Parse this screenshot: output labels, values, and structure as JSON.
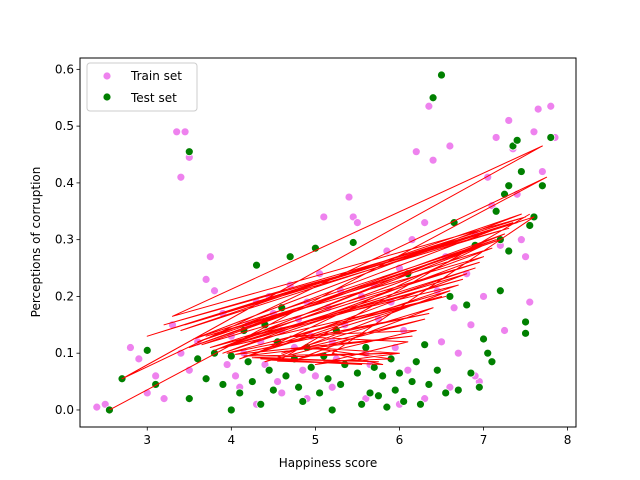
{
  "chart_data": {
    "type": "scatter",
    "xlabel": "Happiness score",
    "ylabel": "Perceptions of corruption",
    "xlim": [
      2.2,
      8.1
    ],
    "ylim": [
      -0.03,
      0.62
    ],
    "xticks": [
      3,
      4,
      5,
      6,
      7,
      8
    ],
    "yticks": [
      0.0,
      0.1,
      0.2,
      0.3,
      0.4,
      0.5,
      0.6
    ],
    "grid": false,
    "legend_position": "top-left",
    "series": [
      {
        "name": "Train set",
        "kind": "scatter",
        "color": "#ee82ee",
        "points": [
          [
            2.4,
            0.005
          ],
          [
            2.5,
            0.01
          ],
          [
            2.8,
            0.11
          ],
          [
            2.9,
            0.09
          ],
          [
            3.0,
            0.03
          ],
          [
            3.1,
            0.06
          ],
          [
            3.2,
            0.02
          ],
          [
            3.3,
            0.15
          ],
          [
            3.35,
            0.49
          ],
          [
            3.4,
            0.41
          ],
          [
            3.45,
            0.49
          ],
          [
            3.5,
            0.445
          ],
          [
            3.4,
            0.1
          ],
          [
            3.5,
            0.07
          ],
          [
            3.6,
            0.12
          ],
          [
            3.7,
            0.23
          ],
          [
            3.75,
            0.27
          ],
          [
            3.8,
            0.21
          ],
          [
            3.9,
            0.17
          ],
          [
            3.95,
            0.08
          ],
          [
            4.0,
            0.13
          ],
          [
            4.05,
            0.06
          ],
          [
            4.1,
            0.04
          ],
          [
            4.15,
            0.1
          ],
          [
            4.2,
            0.15
          ],
          [
            4.3,
            0.19
          ],
          [
            4.35,
            0.12
          ],
          [
            4.4,
            0.08
          ],
          [
            4.45,
            0.2
          ],
          [
            4.5,
            0.17
          ],
          [
            4.55,
            0.05
          ],
          [
            4.6,
            0.14
          ],
          [
            4.7,
            0.22
          ],
          [
            4.75,
            0.11
          ],
          [
            4.8,
            0.16
          ],
          [
            4.85,
            0.07
          ],
          [
            4.9,
            0.19
          ],
          [
            4.95,
            0.13
          ],
          [
            5.0,
            0.06
          ],
          [
            5.05,
            0.24
          ],
          [
            5.1,
            0.34
          ],
          [
            5.15,
            0.18
          ],
          [
            5.2,
            0.12
          ],
          [
            5.25,
            0.09
          ],
          [
            5.3,
            0.21
          ],
          [
            5.35,
            0.15
          ],
          [
            5.4,
            0.375
          ],
          [
            5.45,
            0.34
          ],
          [
            5.5,
            0.33
          ],
          [
            5.55,
            0.2
          ],
          [
            5.6,
            0.1
          ],
          [
            5.65,
            0.08
          ],
          [
            5.7,
            0.22
          ],
          [
            5.75,
            0.16
          ],
          [
            5.8,
            0.06
          ],
          [
            5.85,
            0.28
          ],
          [
            5.9,
            0.19
          ],
          [
            5.95,
            0.11
          ],
          [
            6.0,
            0.25
          ],
          [
            6.05,
            0.14
          ],
          [
            6.1,
            0.07
          ],
          [
            6.15,
            0.3
          ],
          [
            6.2,
            0.455
          ],
          [
            6.3,
            0.33
          ],
          [
            6.35,
            0.535
          ],
          [
            6.4,
            0.44
          ],
          [
            6.45,
            0.21
          ],
          [
            6.5,
            0.12
          ],
          [
            6.55,
            0.27
          ],
          [
            6.6,
            0.465
          ],
          [
            6.65,
            0.18
          ],
          [
            6.7,
            0.1
          ],
          [
            6.8,
            0.24
          ],
          [
            6.85,
            0.15
          ],
          [
            6.9,
            0.31
          ],
          [
            6.95,
            0.05
          ],
          [
            7.0,
            0.2
          ],
          [
            7.05,
            0.41
          ],
          [
            7.1,
            0.36
          ],
          [
            7.15,
            0.48
          ],
          [
            7.2,
            0.29
          ],
          [
            7.25,
            0.14
          ],
          [
            7.3,
            0.51
          ],
          [
            7.35,
            0.46
          ],
          [
            7.4,
            0.38
          ],
          [
            7.45,
            0.3
          ],
          [
            7.5,
            0.27
          ],
          [
            7.55,
            0.19
          ],
          [
            7.6,
            0.49
          ],
          [
            7.65,
            0.53
          ],
          [
            7.7,
            0.42
          ],
          [
            7.8,
            0.535
          ],
          [
            7.85,
            0.48
          ],
          [
            6.0,
            0.01
          ],
          [
            5.6,
            0.02
          ],
          [
            5.2,
            0.04
          ],
          [
            4.9,
            0.02
          ],
          [
            4.6,
            0.03
          ],
          [
            4.3,
            0.01
          ],
          [
            6.3,
            0.02
          ],
          [
            6.6,
            0.04
          ],
          [
            6.9,
            0.06
          ]
        ]
      },
      {
        "name": "Test set",
        "kind": "scatter",
        "color": "#008000",
        "points": [
          [
            2.55,
            0.0
          ],
          [
            2.7,
            0.055
          ],
          [
            3.0,
            0.105
          ],
          [
            3.1,
            0.045
          ],
          [
            3.5,
            0.455
          ],
          [
            3.5,
            0.02
          ],
          [
            3.6,
            0.09
          ],
          [
            3.7,
            0.055
          ],
          [
            3.8,
            0.1
          ],
          [
            3.9,
            0.045
          ],
          [
            4.0,
            0.095
          ],
          [
            4.1,
            0.03
          ],
          [
            4.15,
            0.14
          ],
          [
            4.2,
            0.085
          ],
          [
            4.3,
            0.255
          ],
          [
            4.35,
            0.01
          ],
          [
            4.4,
            0.15
          ],
          [
            4.45,
            0.07
          ],
          [
            4.5,
            0.035
          ],
          [
            4.55,
            0.12
          ],
          [
            4.6,
            0.18
          ],
          [
            4.65,
            0.06
          ],
          [
            4.7,
            0.27
          ],
          [
            4.75,
            0.09
          ],
          [
            4.8,
            0.04
          ],
          [
            4.85,
            0.015
          ],
          [
            4.9,
            0.11
          ],
          [
            4.95,
            0.075
          ],
          [
            5.0,
            0.285
          ],
          [
            5.05,
            0.03
          ],
          [
            5.1,
            0.095
          ],
          [
            5.15,
            0.055
          ],
          [
            5.2,
            0.0
          ],
          [
            5.25,
            0.14
          ],
          [
            5.3,
            0.045
          ],
          [
            5.35,
            0.08
          ],
          [
            5.45,
            0.295
          ],
          [
            5.5,
            0.065
          ],
          [
            5.55,
            0.01
          ],
          [
            5.6,
            0.11
          ],
          [
            5.65,
            0.03
          ],
          [
            5.7,
            0.075
          ],
          [
            5.75,
            0.025
          ],
          [
            5.8,
            0.06
          ],
          [
            5.85,
            0.005
          ],
          [
            5.9,
            0.09
          ],
          [
            5.95,
            0.035
          ],
          [
            6.0,
            0.065
          ],
          [
            6.05,
            0.015
          ],
          [
            6.1,
            0.24
          ],
          [
            6.15,
            0.05
          ],
          [
            6.2,
            0.085
          ],
          [
            6.25,
            0.01
          ],
          [
            6.3,
            0.115
          ],
          [
            6.35,
            0.045
          ],
          [
            6.4,
            0.55
          ],
          [
            6.45,
            0.07
          ],
          [
            6.5,
            0.59
          ],
          [
            6.55,
            0.03
          ],
          [
            6.6,
            0.2
          ],
          [
            6.65,
            0.33
          ],
          [
            6.7,
            0.035
          ],
          [
            6.8,
            0.185
          ],
          [
            6.85,
            0.065
          ],
          [
            6.9,
            0.29
          ],
          [
            7.0,
            0.125
          ],
          [
            7.05,
            0.1
          ],
          [
            7.1,
            0.085
          ],
          [
            7.15,
            0.35
          ],
          [
            7.2,
            0.21
          ],
          [
            7.25,
            0.38
          ],
          [
            7.3,
            0.395
          ],
          [
            7.35,
            0.465
          ],
          [
            7.4,
            0.475
          ],
          [
            7.45,
            0.42
          ],
          [
            7.5,
            0.155
          ],
          [
            7.5,
            0.135
          ],
          [
            7.55,
            0.325
          ],
          [
            7.6,
            0.34
          ],
          [
            7.7,
            0.395
          ],
          [
            7.8,
            0.48
          ],
          [
            7.2,
            0.3
          ],
          [
            7.3,
            0.28
          ],
          [
            6.95,
            0.04
          ],
          [
            4.0,
            0.0
          ],
          [
            4.25,
            0.05
          ]
        ]
      },
      {
        "name": "",
        "kind": "line",
        "color": "#ff0000",
        "points": [
          [
            2.55,
            0.0
          ],
          [
            7.75,
            0.41
          ],
          [
            2.7,
            0.055
          ],
          [
            7.7,
            0.465
          ],
          [
            3.3,
            0.165
          ],
          [
            7.5,
            0.34
          ],
          [
            3.0,
            0.13
          ],
          [
            7.4,
            0.33
          ],
          [
            3.2,
            0.15
          ],
          [
            7.3,
            0.32
          ],
          [
            3.45,
            0.15
          ],
          [
            7.35,
            0.33
          ],
          [
            3.6,
            0.12
          ],
          [
            7.2,
            0.3
          ],
          [
            3.5,
            0.11
          ],
          [
            7.25,
            0.31
          ],
          [
            3.8,
            0.105
          ],
          [
            7.1,
            0.285
          ],
          [
            3.7,
            0.13
          ],
          [
            7.0,
            0.27
          ],
          [
            3.9,
            0.1
          ],
          [
            6.9,
            0.25
          ],
          [
            4.0,
            0.115
          ],
          [
            6.8,
            0.24
          ],
          [
            4.1,
            0.09
          ],
          [
            6.7,
            0.22
          ],
          [
            4.2,
            0.13
          ],
          [
            7.0,
            0.29
          ],
          [
            4.3,
            0.1
          ],
          [
            6.5,
            0.2
          ],
          [
            4.5,
            0.12
          ],
          [
            6.6,
            0.21
          ],
          [
            4.4,
            0.085
          ],
          [
            6.3,
            0.16
          ],
          [
            4.6,
            0.1
          ],
          [
            6.4,
            0.18
          ],
          [
            4.8,
            0.09
          ],
          [
            6.2,
            0.14
          ],
          [
            4.7,
            0.13
          ],
          [
            6.1,
            0.12
          ],
          [
            5.0,
            0.08
          ],
          [
            6.0,
            0.1
          ],
          [
            4.9,
            0.11
          ],
          [
            5.9,
            0.09
          ],
          [
            5.1,
            0.085
          ],
          [
            5.8,
            0.08
          ],
          [
            5.2,
            0.1
          ],
          [
            7.6,
            0.34
          ],
          [
            3.4,
            0.14
          ],
          [
            7.45,
            0.345
          ],
          [
            3.55,
            0.125
          ],
          [
            7.15,
            0.3
          ],
          [
            3.65,
            0.115
          ],
          [
            6.95,
            0.26
          ],
          [
            3.75,
            0.11
          ],
          [
            6.75,
            0.23
          ],
          [
            3.85,
            0.108
          ],
          [
            6.55,
            0.2
          ],
          [
            3.95,
            0.1
          ],
          [
            6.35,
            0.17
          ],
          [
            4.05,
            0.098
          ],
          [
            6.15,
            0.13
          ],
          [
            4.15,
            0.095
          ],
          [
            5.95,
            0.1
          ],
          [
            4.25,
            0.092
          ],
          [
            5.75,
            0.085
          ],
          [
            4.35,
            0.09
          ],
          [
            5.55,
            0.08
          ],
          [
            4.45,
            0.088
          ],
          [
            5.35,
            0.082
          ],
          [
            4.55,
            0.086
          ],
          [
            7.55,
            0.345
          ]
        ]
      }
    ]
  }
}
